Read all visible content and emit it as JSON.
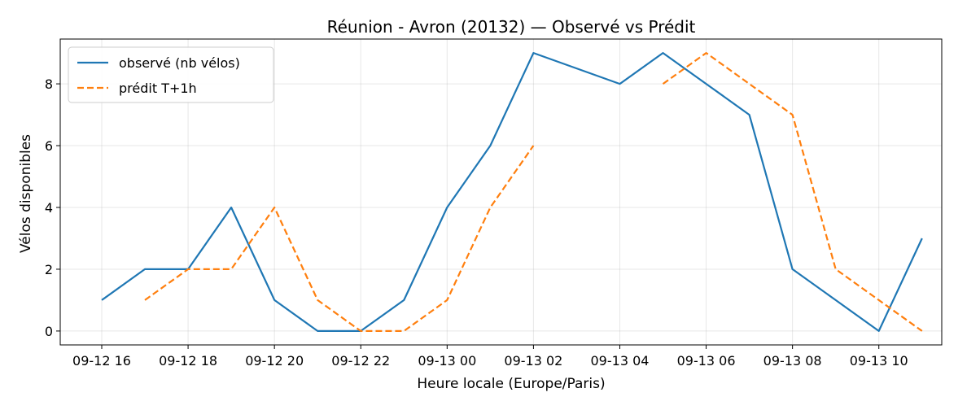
{
  "chart_data": {
    "type": "line",
    "title": "Réunion - Avron (20132) — Observé vs Prédit",
    "xlabel": "Heure locale (Europe/Paris)",
    "ylabel": "Vélos disponibles",
    "x_ticks": [
      "09-12 16",
      "09-12 18",
      "09-12 20",
      "09-12 22",
      "09-13 00",
      "09-13 02",
      "09-13 04",
      "09-13 06",
      "09-13 08",
      "09-13 10"
    ],
    "ylim": [
      -0.45,
      9.45
    ],
    "y_ticks": [
      0,
      2,
      4,
      6,
      8
    ],
    "grid": true,
    "legend_position": "top-left",
    "series": [
      {
        "name": "observé (nb vélos)",
        "color": "#1f77b4",
        "style": "solid",
        "points": [
          [
            "09-12 16:00",
            1
          ],
          [
            "09-12 17:00",
            2
          ],
          [
            "09-12 18:00",
            2
          ],
          [
            "09-12 19:00",
            4
          ],
          [
            "09-12 20:00",
            1
          ],
          [
            "09-12 21:00",
            0
          ],
          [
            "09-12 22:00",
            0
          ],
          [
            "09-12 23:00",
            1
          ],
          [
            "09-13 00:00",
            4
          ],
          [
            "09-13 01:00",
            6
          ],
          [
            "09-13 02:00",
            9
          ],
          [
            "09-13 04:00",
            8
          ],
          [
            "09-13 05:00",
            9
          ],
          [
            "09-13 06:00",
            8
          ],
          [
            "09-13 07:00",
            7
          ],
          [
            "09-13 08:00",
            2
          ],
          [
            "09-13 09:00",
            1
          ],
          [
            "09-13 10:00",
            0
          ],
          [
            "09-13 11:00",
            3
          ]
        ]
      },
      {
        "name": "prédit T+1h",
        "color": "#ff7f0e",
        "style": "dashed",
        "segments": [
          [
            [
              "09-12 17:00",
              1
            ],
            [
              "09-12 18:00",
              2
            ],
            [
              "09-12 19:00",
              2
            ],
            [
              "09-12 20:00",
              4
            ],
            [
              "09-12 21:00",
              1
            ],
            [
              "09-12 22:00",
              0
            ],
            [
              "09-12 23:00",
              0
            ],
            [
              "09-13 00:00",
              1
            ],
            [
              "09-13 01:00",
              4
            ],
            [
              "09-13 02:00",
              6
            ]
          ],
          [
            [
              "09-13 05:00",
              8
            ],
            [
              "09-13 06:00",
              9
            ],
            [
              "09-13 07:00",
              8
            ],
            [
              "09-13 08:00",
              7
            ],
            [
              "09-13 09:00",
              2
            ],
            [
              "09-13 10:00",
              1
            ],
            [
              "09-13 11:00",
              0
            ]
          ]
        ]
      }
    ]
  }
}
